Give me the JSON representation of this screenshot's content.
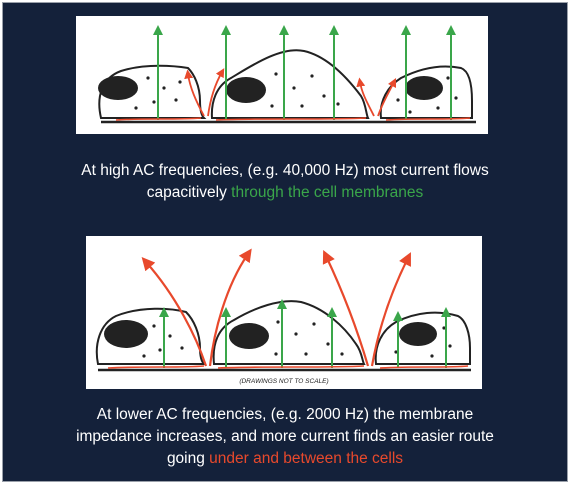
{
  "colors": {
    "background": "#14213a",
    "capacitive_current": "#3aa64a",
    "paracellular_current": "#e8492c",
    "caption_text": "#ffffff"
  },
  "top_panel": {
    "caption_line1": "At high AC frequencies, (e.g. 40,000 Hz) most current flows",
    "caption_line2_prefix": "capacitively ",
    "caption_line2_highlight": "through the cell membranes"
  },
  "bottom_panel": {
    "drawing_note": "(DRAWINGS NOT TO SCALE)",
    "caption_line1": "At lower AC frequencies, (e.g. 2000 Hz) the membrane",
    "caption_line2": "impedance increases, and more current finds an easier route",
    "caption_line3_prefix": "going ",
    "caption_line3_highlight": "under and between the cells"
  }
}
